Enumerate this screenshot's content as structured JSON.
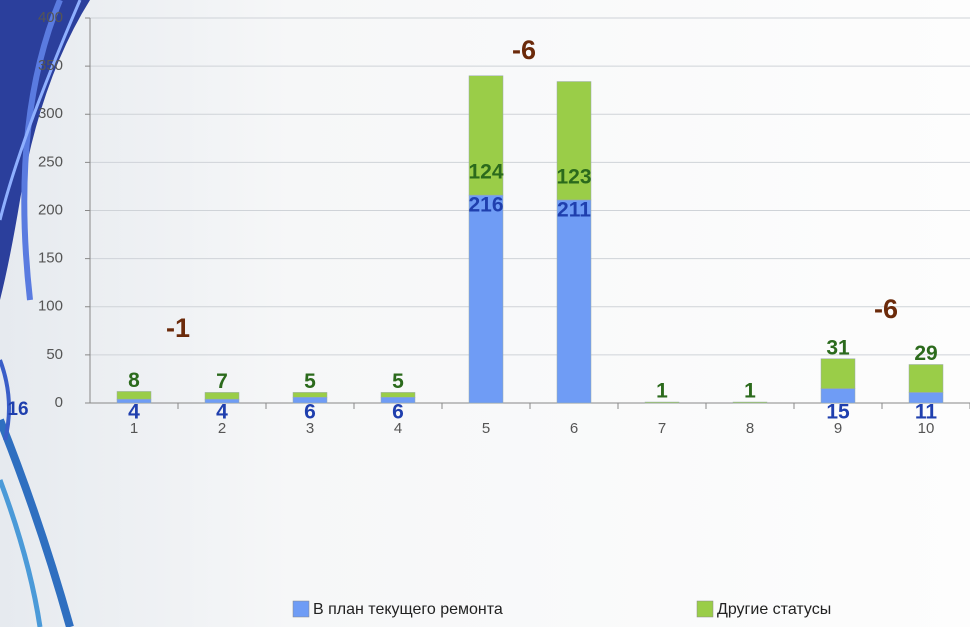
{
  "chart_data": {
    "type": "stacked-bar",
    "categories": [
      "1",
      "2",
      "3",
      "4",
      "5",
      "6",
      "7",
      "8",
      "9",
      "10"
    ],
    "series": [
      {
        "name": "В план текущего ремонта",
        "color": "#6f9cf5",
        "label_color": "#1f3fae",
        "values": [
          4,
          4,
          6,
          6,
          216,
          211,
          null,
          null,
          15,
          11
        ]
      },
      {
        "name": "Другие статусы",
        "color": "#9acd48",
        "label_color": "#2b6a1c",
        "values": [
          8,
          7,
          5,
          5,
          124,
          123,
          1,
          1,
          31,
          29
        ]
      }
    ],
    "ylim": [
      0,
      400
    ],
    "yticks": [
      0,
      50,
      100,
      150,
      200,
      250,
      300,
      350,
      400
    ],
    "grid": true,
    "annotations": [
      "16",
      "-1",
      "-6",
      "-6"
    ]
  }
}
